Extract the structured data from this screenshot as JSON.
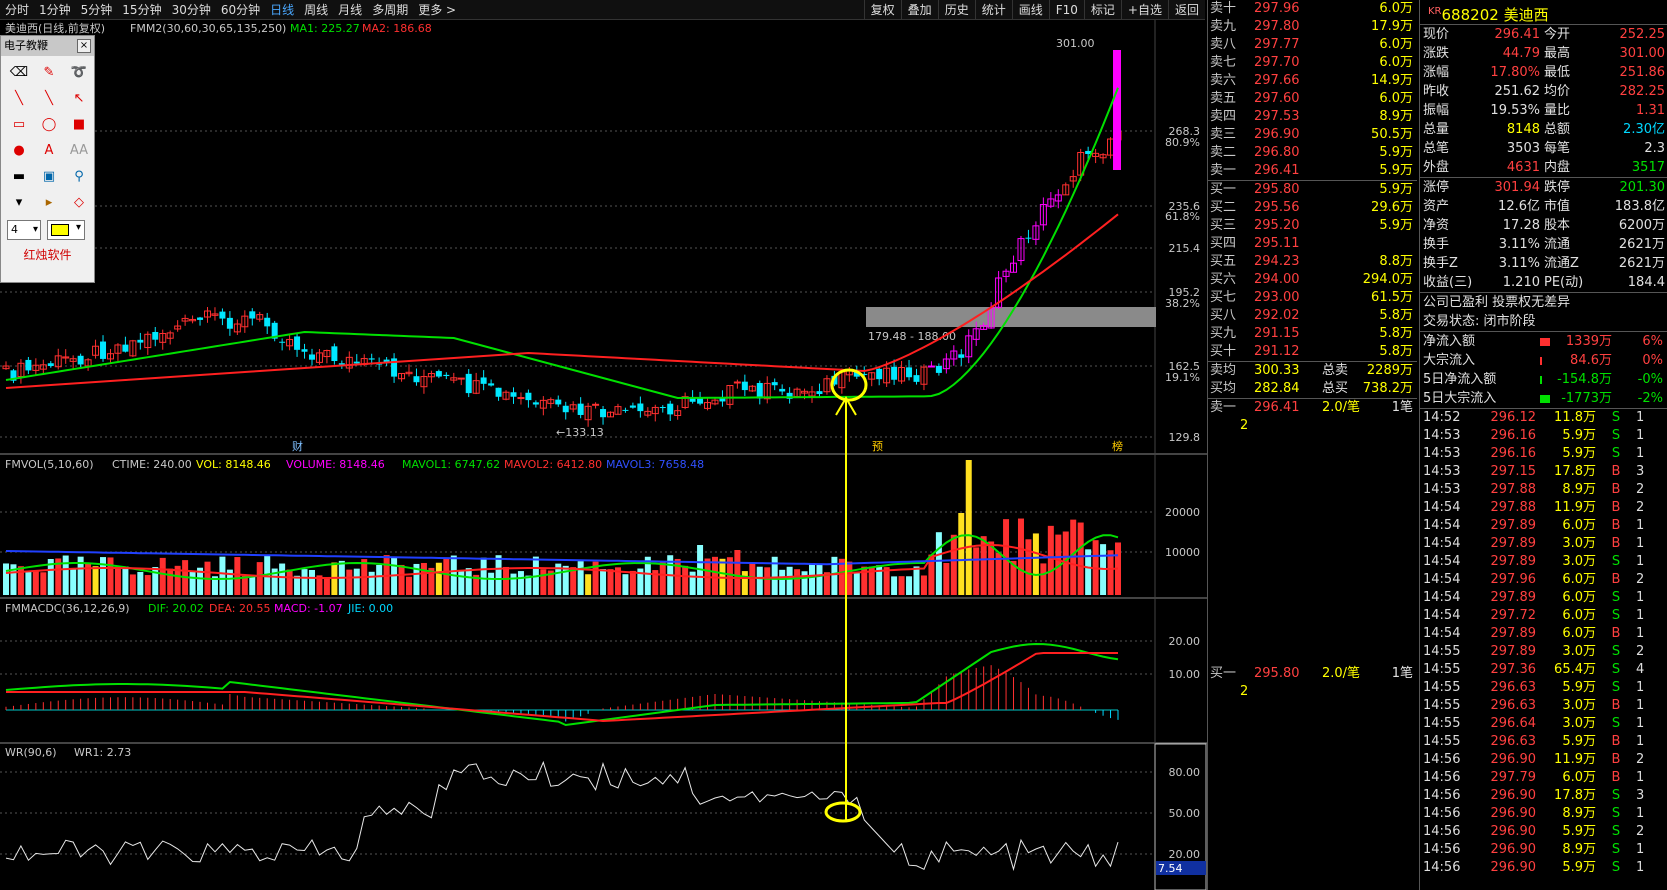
{
  "toolbar": {
    "periods": [
      "分时",
      "1分钟",
      "5分钟",
      "15分钟",
      "30分钟",
      "60分钟",
      "日线",
      "周线",
      "月线",
      "多周期",
      "更多 >"
    ],
    "active_period": "日线",
    "buttons": [
      "复权",
      "叠加",
      "历史",
      "统计",
      "画线",
      "F10",
      "标记",
      "+自选",
      "返回"
    ]
  },
  "main_chart": {
    "header_title": "美迪西(日线,前复权)",
    "indicator": "FMM2(30,60,30,65,135,250)",
    "ma1_label": "MA1: 225.27",
    "ma2_label": "MA2: 186.68",
    "y_ticks": [
      "268.3",
      "235.6",
      "215.4",
      "195.2",
      "162.5",
      "129.8"
    ],
    "pct_ticks": [
      "80.9%",
      "61.8%",
      "38.2%",
      "19.1%"
    ],
    "high_label": "301.00",
    "low_label": "←133.13",
    "zone_label": "179.48 - 188.00",
    "event_markers": [
      "财",
      "预",
      "榜"
    ],
    "colors": {
      "up": "#ff3030",
      "down": "#00e8ff",
      "ma1": "#00e000",
      "ma2": "#ff2020",
      "spike": "#ff00ff",
      "annotation": "#ffff00"
    }
  },
  "vol_chart": {
    "header": "FMVOL(5,10,60)",
    "ctime": "CTIME: 240.00",
    "vol": "VOL: 8148.46",
    "volume": "VOLUME: 8148.46",
    "mavol1": "MAVOL1: 6747.62",
    "mavol2": "MAVOL2: 6412.80",
    "mavol3": "MAVOL3: 7658.48",
    "y_ticks": [
      "20000",
      "10000"
    ]
  },
  "macd_chart": {
    "header": "FMMACDC(36,12,26,9)",
    "dif": "DIF: 20.02",
    "dea": "DEA: 20.55",
    "macd": "MACD: -1.07",
    "jie": "JIE: 0.00",
    "y_ticks": [
      "20.00",
      "10.00"
    ]
  },
  "wr_chart": {
    "header": "WR(90,6)",
    "wr1": "WR1: 2.73",
    "y_ticks": [
      "80.00",
      "50.00",
      "20.00"
    ],
    "current_value": "7.54"
  },
  "toolbox": {
    "title": "电子教鞭",
    "close": "×",
    "line_width": "4",
    "brand": "红烛软件",
    "tools": [
      "eraser-icon",
      "pen-icon",
      "highlighter-icon",
      "marker-icon",
      "line-icon",
      "arrow-icon",
      "rect-outline-icon",
      "ellipse-outline-icon",
      "rect-fill-icon",
      "ellipse-fill-icon",
      "text-icon",
      "text-outline-icon",
      "black-rect-icon",
      "screen-icon",
      "zoom-icon",
      "save-icon",
      "open-icon",
      "diamond-icon"
    ],
    "tool_glyphs": [
      "⌫",
      "✎",
      "➰",
      "╲",
      "╲",
      "↖",
      "▭",
      "◯",
      "■",
      "●",
      "A",
      "AA",
      "▬",
      "▣",
      "⚲",
      "▾",
      "▸",
      "◇"
    ]
  },
  "order_book": {
    "asks": [
      {
        "name": "卖十",
        "price": "297.96",
        "vol": "6.0万"
      },
      {
        "name": "卖九",
        "price": "297.80",
        "vol": "17.9万"
      },
      {
        "name": "卖八",
        "price": "297.77",
        "vol": "6.0万"
      },
      {
        "name": "卖七",
        "price": "297.70",
        "vol": "6.0万"
      },
      {
        "name": "卖六",
        "price": "297.66",
        "vol": "14.9万"
      },
      {
        "name": "卖五",
        "price": "297.60",
        "vol": "6.0万"
      },
      {
        "name": "卖四",
        "price": "297.53",
        "vol": "8.9万"
      },
      {
        "name": "卖三",
        "price": "296.90",
        "vol": "50.5万"
      },
      {
        "name": "卖二",
        "price": "296.80",
        "vol": "5.9万"
      },
      {
        "name": "卖一",
        "price": "296.41",
        "vol": "5.9万"
      }
    ],
    "bids": [
      {
        "name": "买一",
        "price": "295.80",
        "vol": "5.9万"
      },
      {
        "name": "买二",
        "price": "295.56",
        "vol": "29.6万"
      },
      {
        "name": "买三",
        "price": "295.20",
        "vol": "5.9万"
      },
      {
        "name": "买四",
        "price": "295.11",
        "vol": ""
      },
      {
        "name": "买五",
        "price": "294.23",
        "vol": "8.8万"
      },
      {
        "name": "买六",
        "price": "294.00",
        "vol": "294.0万"
      },
      {
        "name": "买七",
        "price": "293.00",
        "vol": "61.5万"
      },
      {
        "name": "买八",
        "price": "292.02",
        "vol": "5.8万"
      },
      {
        "name": "买九",
        "price": "291.15",
        "vol": "5.8万"
      },
      {
        "name": "买十",
        "price": "291.12",
        "vol": "5.8万"
      }
    ],
    "ask_avg_label": "卖均",
    "ask_avg": "300.33",
    "ask_total_label": "总卖",
    "ask_total": "2289万",
    "bid_avg_label": "买均",
    "bid_avg": "282.84",
    "bid_total_label": "总买",
    "bid_total": "738.2万",
    "ask1_detail": {
      "name": "卖一",
      "price": "296.41",
      "vol": "2.0/笔",
      "count": "1笔",
      "queue": "2"
    },
    "bid1_detail": {
      "name": "买一",
      "price": "295.80",
      "vol": "2.0/笔",
      "count": "1笔",
      "queue": "2"
    }
  },
  "stock_info": {
    "code_prefix": "KR",
    "code": "688202",
    "name": "美迪西",
    "rows": [
      {
        "a": "现价",
        "b": "296.41",
        "bc": "up",
        "c": "今开",
        "d": "252.25",
        "dc": "up"
      },
      {
        "a": "涨跌",
        "b": "44.79",
        "bc": "up",
        "c": "最高",
        "d": "301.00",
        "dc": "up"
      },
      {
        "a": "涨幅",
        "b": "17.80%",
        "bc": "up",
        "c": "最低",
        "d": "251.86",
        "dc": "up"
      },
      {
        "a": "昨收",
        "b": "251.62",
        "bc": "wh",
        "c": "均价",
        "d": "282.25",
        "dc": "up"
      },
      {
        "a": "振幅",
        "b": "19.53%",
        "bc": "wh",
        "c": "量比",
        "d": "1.31",
        "dc": "up"
      },
      {
        "a": "总量",
        "b": "8148",
        "bc": "yel",
        "c": "总额",
        "d": "2.30亿",
        "dc": "cy"
      },
      {
        "a": "总笔",
        "b": "3503",
        "bc": "wh",
        "c": "每笔",
        "d": "2.3",
        "dc": "wh"
      },
      {
        "a": "外盘",
        "b": "4631",
        "bc": "up",
        "c": "内盘",
        "d": "3517",
        "dc": "dn"
      }
    ],
    "rows2": [
      {
        "a": "涨停",
        "b": "301.94",
        "bc": "up",
        "c": "跌停",
        "d": "201.30",
        "dc": "dn"
      },
      {
        "a": "资产",
        "b": "12.6亿",
        "bc": "wh",
        "c": "市值",
        "d": "183.8亿",
        "dc": "wh"
      },
      {
        "a": "净资",
        "b": "17.28",
        "bc": "wh",
        "c": "股本",
        "d": "6200万",
        "dc": "wh"
      },
      {
        "a": "换手",
        "b": "3.11%",
        "bc": "wh",
        "c": "流通",
        "d": "2621万",
        "dc": "wh"
      },
      {
        "a": "换手Z",
        "b": "3.11%",
        "bc": "wh",
        "c": "流通Z",
        "d": "2621万",
        "dc": "wh"
      },
      {
        "a": "收益(三)",
        "b": "1.210",
        "bc": "wh",
        "c": "PE(动)",
        "d": "184.4",
        "dc": "wh"
      }
    ],
    "profit_note": "公司已盈利 投票权无差异",
    "trade_status": "交易状态: 闭市阶段",
    "flows": [
      {
        "a": "净流入额",
        "b": "1339万",
        "bc": "up",
        "c": "6%",
        "cc": "up",
        "bar": "#ff3030"
      },
      {
        "a": "大宗流入",
        "b": "84.6万",
        "bc": "up",
        "c": "0%",
        "cc": "up",
        "bar": "#ff3030"
      },
      {
        "a": "5日净流入额",
        "b": "-154.8万",
        "bc": "dn",
        "c": "-0%",
        "cc": "dn",
        "bar": "#00e000"
      },
      {
        "a": "5日大宗流入",
        "b": "-1773万",
        "bc": "dn",
        "c": "-2%",
        "cc": "dn",
        "bar": "#00e000"
      }
    ],
    "ticks": [
      {
        "t": "14:52",
        "p": "296.12",
        "v": "11.8万",
        "s": "S",
        "k": "1"
      },
      {
        "t": "14:53",
        "p": "296.16",
        "v": "5.9万",
        "s": "S",
        "k": "1"
      },
      {
        "t": "14:53",
        "p": "296.16",
        "v": "5.9万",
        "s": "S",
        "k": "1"
      },
      {
        "t": "14:53",
        "p": "297.15",
        "v": "17.8万",
        "s": "B",
        "k": "3"
      },
      {
        "t": "14:53",
        "p": "297.88",
        "v": "8.9万",
        "s": "B",
        "k": "2"
      },
      {
        "t": "14:54",
        "p": "297.88",
        "v": "11.9万",
        "s": "B",
        "k": "2"
      },
      {
        "t": "14:54",
        "p": "297.89",
        "v": "6.0万",
        "s": "B",
        "k": "1"
      },
      {
        "t": "14:54",
        "p": "297.89",
        "v": "3.0万",
        "s": "B",
        "k": "1"
      },
      {
        "t": "14:54",
        "p": "297.89",
        "v": "3.0万",
        "s": "S",
        "k": "1"
      },
      {
        "t": "14:54",
        "p": "297.96",
        "v": "6.0万",
        "s": "B",
        "k": "2"
      },
      {
        "t": "14:54",
        "p": "297.89",
        "v": "6.0万",
        "s": "S",
        "k": "1"
      },
      {
        "t": "14:54",
        "p": "297.72",
        "v": "6.0万",
        "s": "S",
        "k": "1"
      },
      {
        "t": "14:54",
        "p": "297.89",
        "v": "6.0万",
        "s": "B",
        "k": "1"
      },
      {
        "t": "14:55",
        "p": "297.89",
        "v": "3.0万",
        "s": "S",
        "k": "2"
      },
      {
        "t": "14:55",
        "p": "297.36",
        "v": "65.4万",
        "s": "S",
        "k": "4"
      },
      {
        "t": "14:55",
        "p": "296.63",
        "v": "5.9万",
        "s": "S",
        "k": "1"
      },
      {
        "t": "14:55",
        "p": "296.63",
        "v": "3.0万",
        "s": "B",
        "k": "1"
      },
      {
        "t": "14:55",
        "p": "296.64",
        "v": "3.0万",
        "s": "S",
        "k": "1"
      },
      {
        "t": "14:55",
        "p": "296.63",
        "v": "5.9万",
        "s": "B",
        "k": "1"
      },
      {
        "t": "14:56",
        "p": "296.90",
        "v": "11.9万",
        "s": "B",
        "k": "2"
      },
      {
        "t": "14:56",
        "p": "297.79",
        "v": "6.0万",
        "s": "B",
        "k": "1"
      },
      {
        "t": "14:56",
        "p": "296.90",
        "v": "17.8万",
        "s": "S",
        "k": "3"
      },
      {
        "t": "14:56",
        "p": "296.90",
        "v": "8.9万",
        "s": "S",
        "k": "1"
      },
      {
        "t": "14:56",
        "p": "296.90",
        "v": "5.9万",
        "s": "S",
        "k": "2"
      },
      {
        "t": "14:56",
        "p": "296.90",
        "v": "8.9万",
        "s": "S",
        "k": "1"
      },
      {
        "t": "14:56",
        "p": "296.90",
        "v": "5.9万",
        "s": "S",
        "k": "1"
      }
    ]
  }
}
